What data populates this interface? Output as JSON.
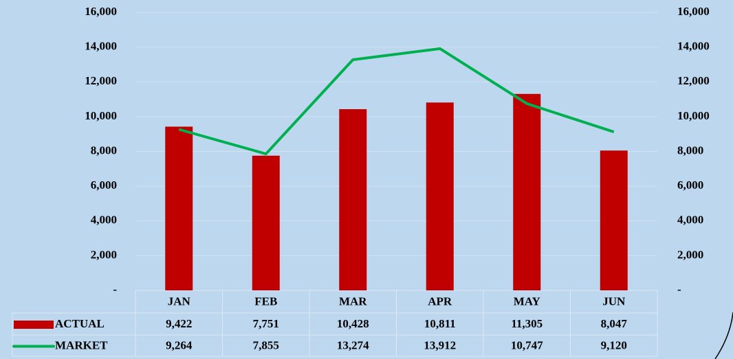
{
  "chart_data": {
    "type": "bar-line",
    "categories": [
      "JAN",
      "FEB",
      "MAR",
      "APR",
      "MAY",
      "JUN"
    ],
    "series": [
      {
        "name": "ACTUAL",
        "type": "bar",
        "color": "#c00000",
        "values": [
          9422,
          7751,
          10428,
          10811,
          11305,
          8047
        ],
        "value_labels": [
          "9,422",
          "7,751",
          "10,428",
          "10,811",
          "11,305",
          "8,047"
        ]
      },
      {
        "name": "MARKET",
        "type": "line",
        "axis": "y2",
        "color": "#00b050",
        "values": [
          9264,
          7855,
          13274,
          13912,
          10747,
          9120
        ],
        "value_labels": [
          "9,264",
          "7,855",
          "13,274",
          "13,912",
          "10,747",
          "9,120"
        ]
      }
    ],
    "ylim": [
      0,
      16000
    ],
    "yticks": [
      {
        "value": 0,
        "label": "-"
      },
      {
        "value": 2000,
        "label": "2,000"
      },
      {
        "value": 4000,
        "label": "4,000"
      },
      {
        "value": 6000,
        "label": "6,000"
      },
      {
        "value": 8000,
        "label": "8,000"
      },
      {
        "value": 10000,
        "label": "10,000"
      },
      {
        "value": 12000,
        "label": "12,000"
      },
      {
        "value": 14000,
        "label": "14,000"
      },
      {
        "value": 16000,
        "label": "16,000"
      }
    ],
    "y2lim": [
      0,
      16000
    ],
    "y2ticks": [
      {
        "value": 0,
        "label": "-"
      },
      {
        "value": 2000,
        "label": "2,000"
      },
      {
        "value": 4000,
        "label": "4,000"
      },
      {
        "value": 6000,
        "label": "6,000"
      },
      {
        "value": 8000,
        "label": "8,000"
      },
      {
        "value": 10000,
        "label": "10,000"
      },
      {
        "value": 12000,
        "label": "12,000"
      },
      {
        "value": 14000,
        "label": "14,000"
      },
      {
        "value": 16000,
        "label": "16,000"
      }
    ],
    "grid": true,
    "data_table": true
  }
}
